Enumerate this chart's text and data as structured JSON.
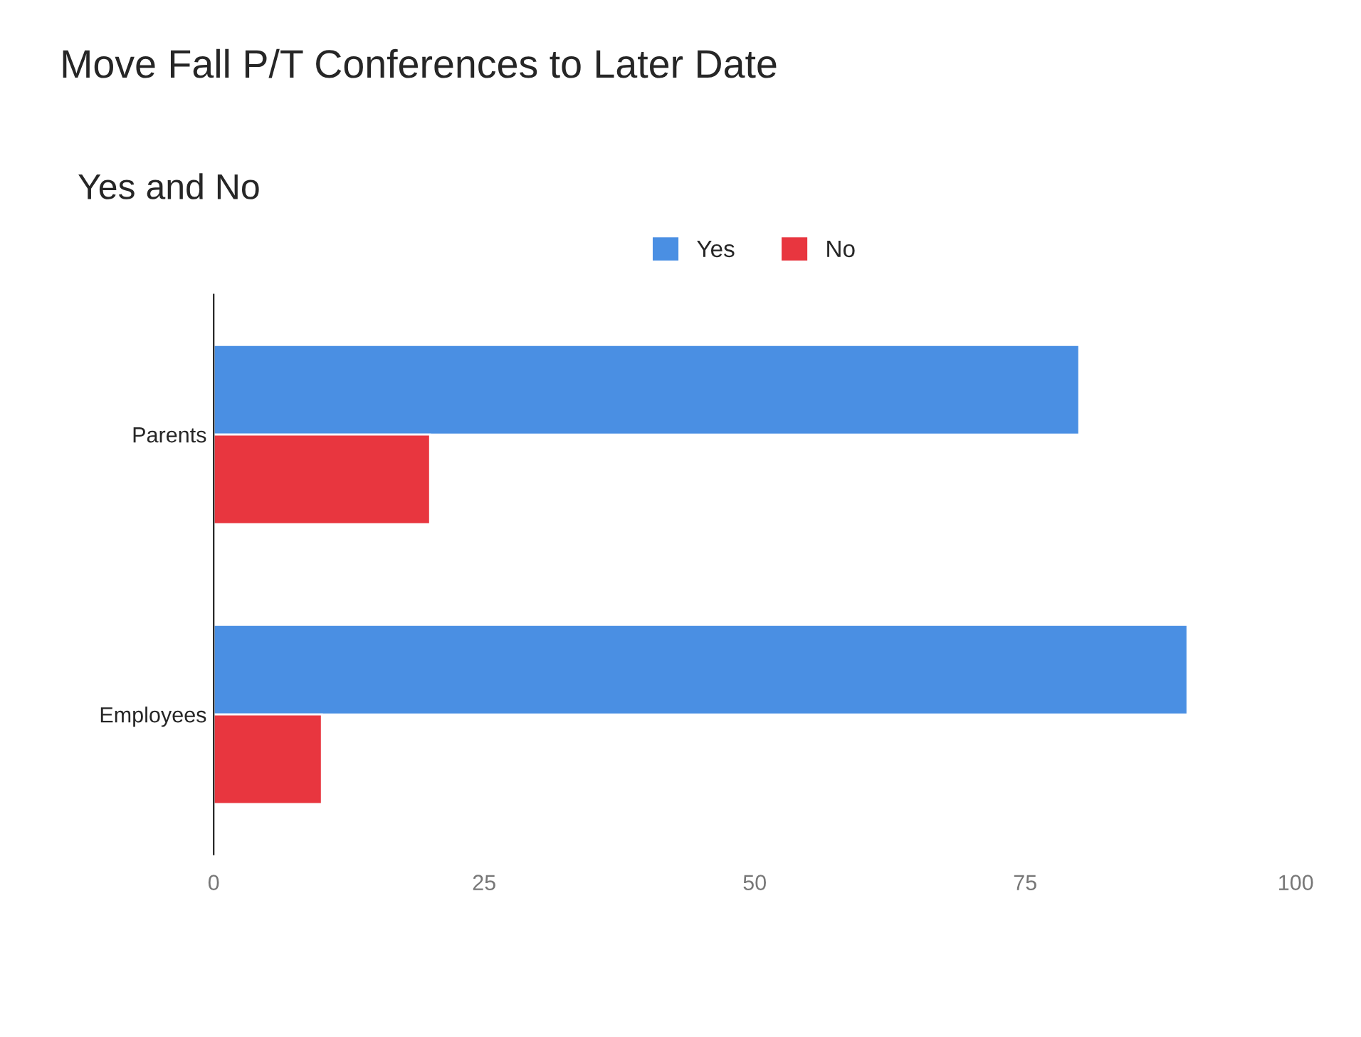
{
  "chart_data": {
    "type": "bar",
    "orientation": "horizontal",
    "title": "Move Fall P/T Conferences to Later Date",
    "subtitle": "Yes and No",
    "categories": [
      "Parents",
      "Employees"
    ],
    "series": [
      {
        "name": "Yes",
        "color": "#4a8fe3",
        "values": [
          80,
          90
        ]
      },
      {
        "name": "No",
        "color": "#e8363f",
        "values": [
          20,
          10
        ]
      }
    ],
    "xlim": [
      0,
      100
    ],
    "xticks": [
      0,
      25,
      50,
      75,
      100
    ],
    "grid": false,
    "legend": "top"
  }
}
